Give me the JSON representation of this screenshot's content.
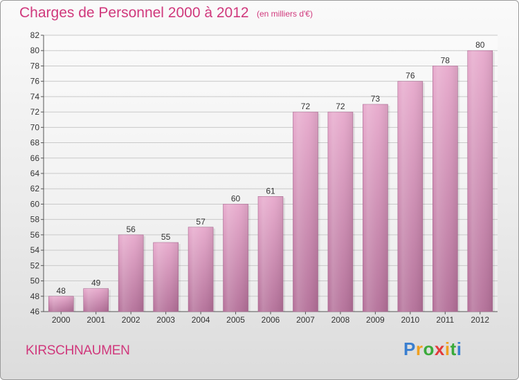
{
  "chart_data": {
    "type": "bar",
    "title": "Charges de Personnel 2000 à 2012",
    "subtitle": "(en milliers d'€)",
    "categories": [
      "2000",
      "2001",
      "2002",
      "2003",
      "2004",
      "2005",
      "2006",
      "2007",
      "2008",
      "2009",
      "2010",
      "2011",
      "2012"
    ],
    "values": [
      48,
      49,
      56,
      55,
      57,
      60,
      61,
      72,
      72,
      73,
      76,
      78,
      80
    ],
    "ylim": [
      46,
      82
    ],
    "ytick_step": 2,
    "xlabel": "",
    "ylabel": "",
    "grid": true
  },
  "commune": "KIRSCHNAUMEN",
  "logo": {
    "letters": [
      "P",
      "r",
      "o",
      "x",
      "i",
      "t",
      "i"
    ],
    "colors": [
      "#3a7fd0",
      "#f0a020",
      "#3aaa3a",
      "#e23a3a",
      "#f0a020",
      "#3aaa3a",
      "#3a7fd0"
    ]
  }
}
